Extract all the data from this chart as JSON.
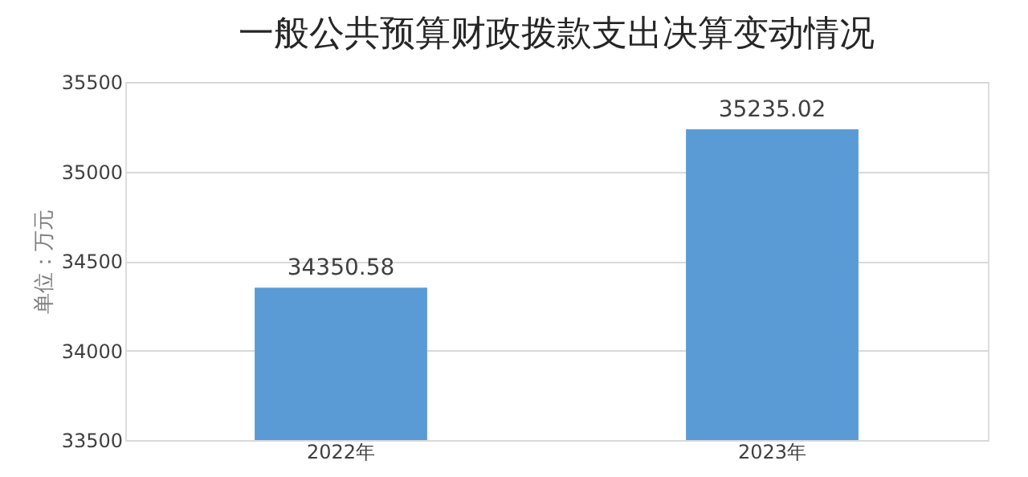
{
  "chart_data": {
    "type": "bar",
    "title": "一般公共预算财政拨款支出决算变动情况",
    "ylabel": "单位：万元",
    "categories": [
      "2022年",
      "2023年"
    ],
    "values": [
      34350.58,
      35235.02
    ],
    "color": "#5b9bd5",
    "ylim": [
      33500,
      35500
    ],
    "yticks": [
      33500,
      34000,
      34500,
      35000,
      35500
    ],
    "grid": "y",
    "data_labels": true
  }
}
